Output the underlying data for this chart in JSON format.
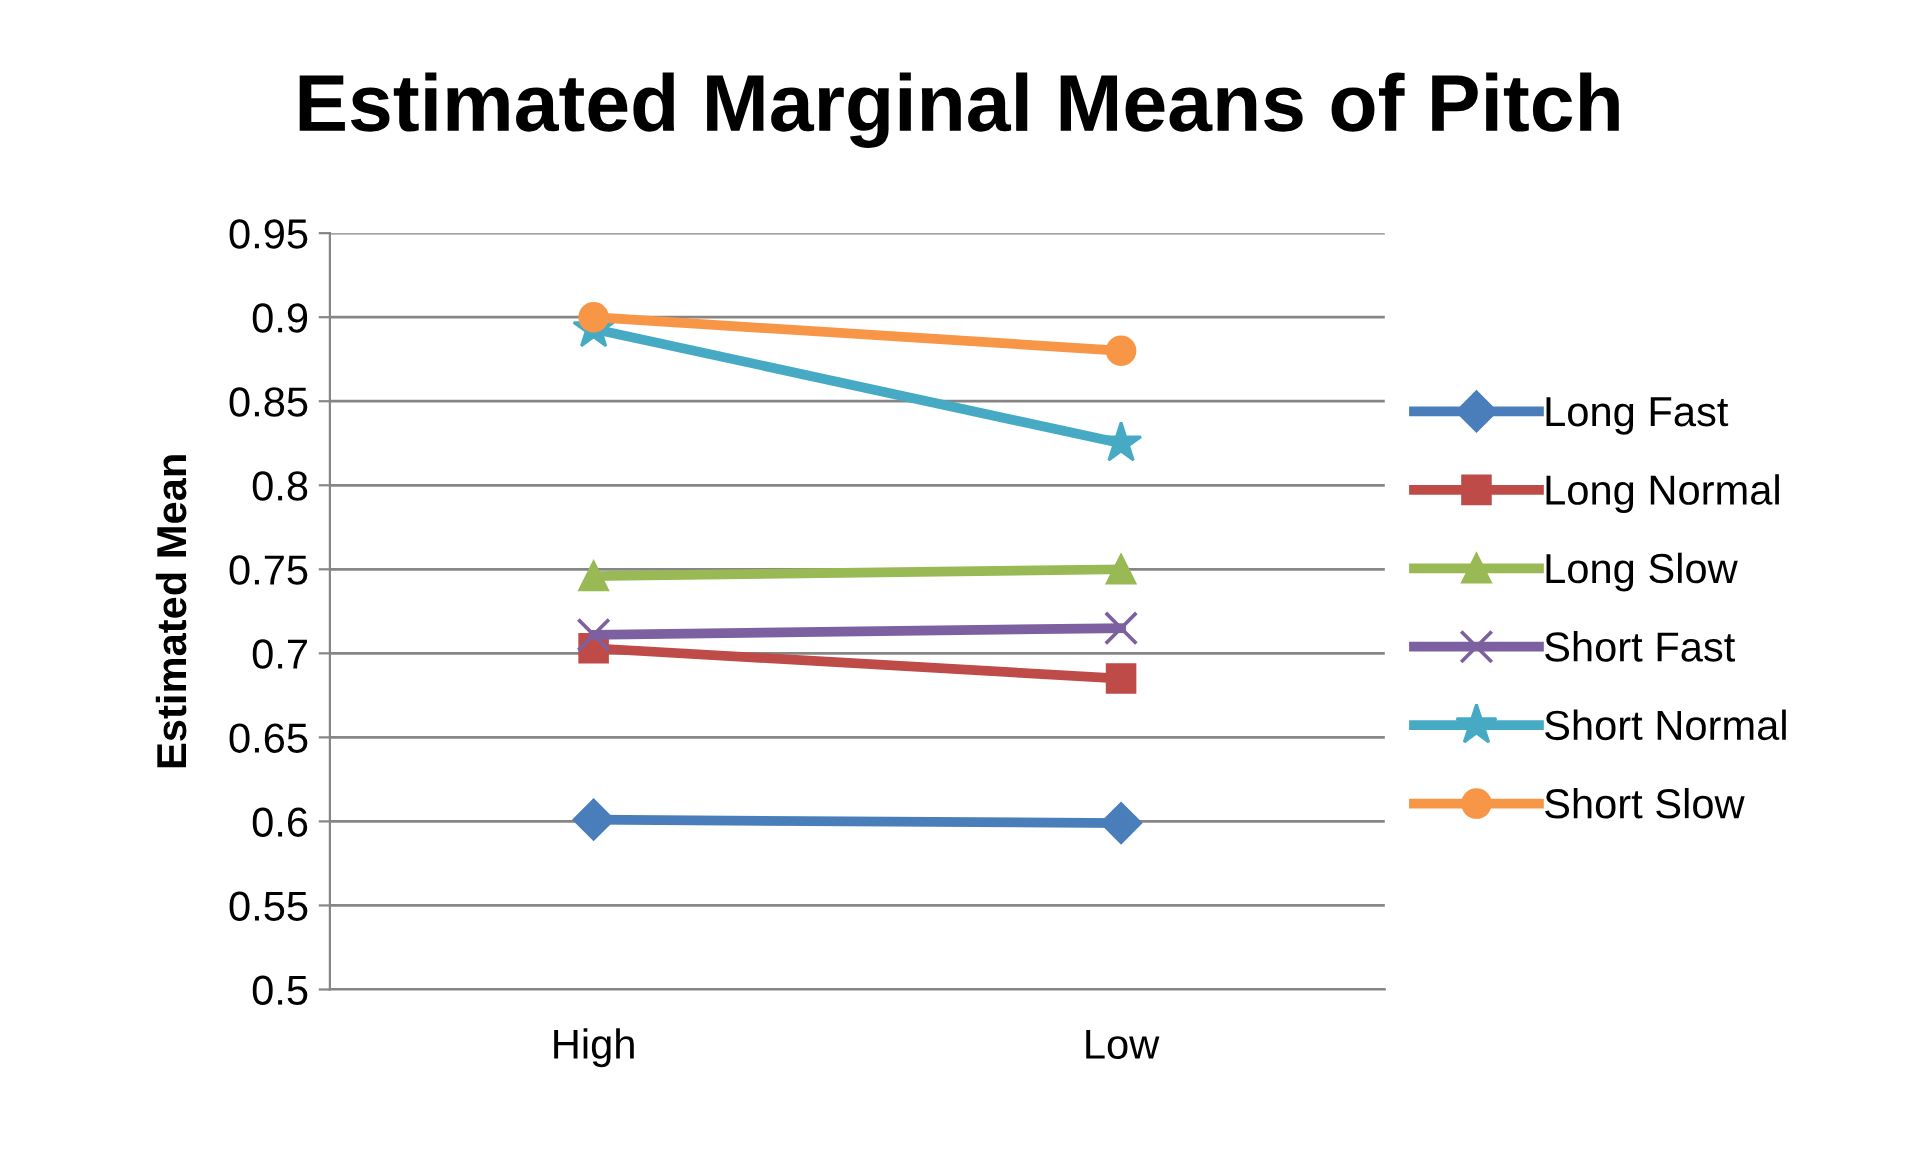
{
  "chart_data": {
    "type": "line",
    "title": "Estimated Marginal Means of Pitch",
    "ylabel": "Estimated Mean",
    "categories": [
      "High",
      "Low"
    ],
    "series": [
      {
        "name": "Long Fast",
        "color": "#4a7ebb",
        "marker": "diamond",
        "values": [
          0.601,
          0.599
        ]
      },
      {
        "name": "Long Normal",
        "color": "#be4b48",
        "marker": "square",
        "values": [
          0.703,
          0.685
        ]
      },
      {
        "name": "Long Slow",
        "color": "#98b954",
        "marker": "triangle",
        "values": [
          0.746,
          0.75
        ]
      },
      {
        "name": "Short Fast",
        "color": "#7d60a0",
        "marker": "cross",
        "values": [
          0.711,
          0.715
        ]
      },
      {
        "name": "Short Normal",
        "color": "#46aac5",
        "marker": "star",
        "values": [
          0.893,
          0.825
        ]
      },
      {
        "name": "Short Slow",
        "color": "#f79646",
        "marker": "circle",
        "values": [
          0.9,
          0.88
        ]
      }
    ],
    "ylim": [
      0.5,
      0.95
    ],
    "yticks": [
      0.5,
      0.55,
      0.6,
      0.65,
      0.7,
      0.75,
      0.8,
      0.85,
      0.9,
      0.95
    ],
    "grid": "y",
    "legend": "right",
    "line_style": "solid"
  }
}
